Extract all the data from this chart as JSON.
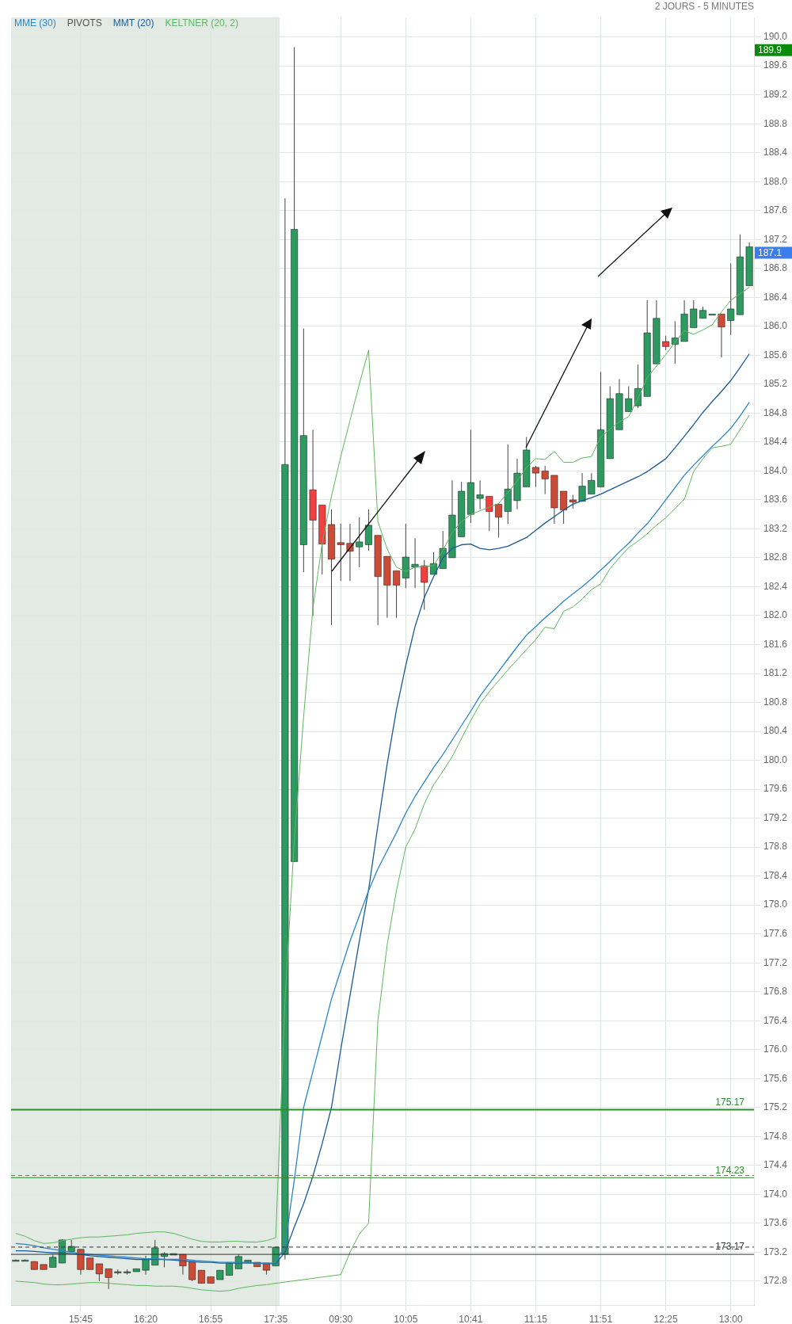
{
  "chart_data": {
    "type": "candlestick",
    "subtitle": "2 JOURS - 5 MINUTES",
    "categories": [
      null,
      null,
      null,
      null,
      null,
      null,
      null,
      "15:45",
      null,
      null,
      null,
      null,
      null,
      null,
      "16:20",
      null,
      null,
      null,
      null,
      null,
      null,
      "16:55",
      null,
      null,
      null,
      null,
      null,
      null,
      "17:35",
      null,
      null,
      null,
      null,
      null,
      null,
      "09:30",
      null,
      null,
      null,
      null,
      null,
      null,
      "10:05",
      null,
      null,
      null,
      null,
      null,
      null,
      "10:41",
      null,
      null,
      null,
      null,
      null,
      null,
      "11:15",
      null,
      null,
      null,
      null,
      null,
      null,
      "11:51",
      null,
      null,
      null,
      null,
      null,
      null,
      "12:25",
      null,
      null,
      null,
      null,
      null,
      null,
      "13:00",
      null,
      null
    ],
    "ohlc": [
      [
        173.09,
        173.1,
        173.08,
        173.09
      ],
      [
        173.09,
        173.1,
        173.08,
        173.09
      ],
      [
        173.07,
        173.07,
        172.96,
        172.96
      ],
      [
        173.03,
        173.03,
        172.96,
        172.96
      ],
      [
        172.99,
        173.17,
        172.99,
        173.13
      ],
      [
        173.05,
        173.38,
        173.05,
        173.37
      ],
      [
        173.21,
        173.37,
        173.21,
        173.28
      ],
      [
        173.24,
        173.24,
        172.89,
        172.96
      ],
      [
        173.12,
        173.12,
        172.96,
        172.96
      ],
      [
        173.04,
        173.04,
        172.8,
        172.9
      ],
      [
        172.97,
        172.97,
        172.69,
        172.85
      ],
      [
        172.93,
        172.96,
        172.89,
        172.93
      ],
      [
        172.93,
        172.96,
        172.89,
        172.93
      ],
      [
        172.93,
        172.97,
        172.93,
        172.97
      ],
      [
        172.95,
        173.15,
        172.89,
        173.1
      ],
      [
        173.02,
        173.37,
        173.02,
        173.26
      ],
      [
        173.14,
        173.2,
        172.99,
        173.18
      ],
      [
        173.16,
        173.18,
        173.16,
        173.18
      ],
      [
        173.17,
        173.17,
        172.89,
        173.01
      ],
      [
        173.07,
        173.07,
        172.8,
        172.82
      ],
      [
        172.95,
        172.95,
        172.77,
        172.77
      ],
      [
        172.86,
        172.86,
        172.77,
        172.77
      ],
      [
        172.82,
        172.95,
        172.82,
        172.95
      ],
      [
        172.88,
        173.06,
        172.88,
        173.05
      ],
      [
        172.97,
        173.17,
        172.97,
        173.14
      ],
      [
        173.06,
        173.09,
        173.06,
        173.09
      ],
      [
        173.06,
        173.06,
        173.0,
        173.0
      ],
      [
        173.05,
        173.05,
        172.89,
        172.95
      ],
      [
        173.01,
        173.27,
        173.01,
        173.27
      ],
      [
        173.17,
        187.77,
        173.1,
        184.09
      ],
      [
        178.6,
        189.86,
        178.6,
        187.34
      ],
      [
        182.98,
        185.97,
        182.6,
        184.49
      ],
      [
        183.74,
        184.57,
        182.0,
        183.32
      ],
      [
        183.53,
        183.53,
        182.57,
        182.99
      ],
      [
        183.26,
        183.47,
        181.87,
        182.78
      ],
      [
        183.01,
        183.27,
        182.48,
        182.98
      ],
      [
        183.0,
        183.27,
        182.48,
        182.89
      ],
      [
        182.95,
        183.36,
        182.67,
        183.02
      ],
      [
        182.98,
        183.47,
        182.9,
        183.25
      ],
      [
        183.11,
        183.11,
        181.87,
        182.54
      ],
      [
        182.82,
        182.82,
        181.97,
        182.42
      ],
      [
        182.62,
        182.62,
        181.97,
        182.42
      ],
      [
        182.52,
        183.27,
        182.38,
        182.81
      ],
      [
        182.67,
        183.07,
        182.38,
        182.71
      ],
      [
        182.69,
        182.77,
        182.08,
        182.46
      ],
      [
        182.57,
        182.88,
        182.57,
        182.72
      ],
      [
        182.65,
        183.17,
        182.65,
        182.93
      ],
      [
        182.8,
        183.87,
        182.8,
        183.39
      ],
      [
        183.09,
        183.85,
        183.09,
        183.72
      ],
      [
        183.4,
        184.57,
        183.28,
        183.84
      ],
      [
        183.62,
        183.87,
        183.47,
        183.67
      ],
      [
        183.65,
        183.65,
        183.17,
        183.44
      ],
      [
        183.54,
        183.54,
        183.08,
        183.36
      ],
      [
        183.44,
        184.37,
        183.27,
        183.75
      ],
      [
        183.59,
        184.17,
        183.47,
        183.97
      ],
      [
        183.78,
        184.47,
        183.78,
        184.29
      ],
      [
        184.05,
        184.07,
        183.78,
        183.97
      ],
      [
        184.0,
        184.07,
        183.68,
        183.89
      ],
      [
        183.94,
        183.94,
        183.27,
        183.49
      ],
      [
        183.72,
        183.72,
        183.27,
        183.46
      ],
      [
        183.6,
        183.67,
        183.48,
        183.57
      ],
      [
        183.58,
        183.97,
        183.58,
        183.79
      ],
      [
        183.68,
        183.97,
        183.68,
        183.87
      ],
      [
        183.78,
        185.37,
        183.78,
        184.57
      ],
      [
        184.17,
        185.17,
        184.17,
        185.0
      ],
      [
        184.57,
        185.27,
        184.57,
        185.07
      ],
      [
        184.82,
        185.17,
        184.82,
        185.0
      ],
      [
        184.9,
        185.47,
        184.87,
        185.14
      ],
      [
        185.03,
        186.36,
        185.03,
        185.91
      ],
      [
        185.48,
        186.36,
        185.48,
        186.11
      ],
      [
        185.79,
        185.87,
        185.67,
        185.72
      ],
      [
        185.75,
        186.07,
        185.48,
        185.84
      ],
      [
        185.79,
        186.36,
        185.79,
        186.17
      ],
      [
        185.98,
        186.36,
        185.98,
        186.24
      ],
      [
        186.11,
        186.27,
        186.11,
        186.22
      ],
      [
        186.17,
        186.17,
        186.17,
        186.17
      ],
      [
        186.17,
        186.17,
        185.57,
        185.99
      ],
      [
        186.08,
        186.87,
        185.88,
        186.24
      ],
      [
        186.16,
        187.27,
        186.16,
        186.96
      ],
      [
        186.56,
        187.16,
        186.56,
        187.1
      ]
    ],
    "colors": [
      "#2e9961",
      "#2e9961",
      "#cc4b37",
      "#cc4b37",
      "#2e9961",
      "#2e9961",
      "#2e9961",
      "#cc4b37",
      "#cc4b37",
      "#cc4b37",
      "#cc4b37",
      "#2e9961",
      "#2e9961",
      "#2e9961",
      "#2e9961",
      "#2e9961",
      "#2e9961",
      "#2e9961",
      "#cc4b37",
      "#cc4b37",
      "#cc4b37",
      "#cc4b37",
      "#2e9961",
      "#2e9961",
      "#2e9961",
      "#2e9961",
      "#cc4b37",
      "#cc4b37",
      "#2e9961",
      "#2e9961",
      "#2e9961",
      "#2e9961",
      "#f04040",
      "#f04040",
      "#cc4b37",
      "#cc4b37",
      "#cc4b37",
      "#2e9961",
      "#2e9961",
      "#cc4b37",
      "#cc4b37",
      "#cc4b37",
      "#2e9961",
      "#2e9961",
      "#f04040",
      "#2e9961",
      "#2e9961",
      "#2e9961",
      "#2e9961",
      "#2e9961",
      "#2e9961",
      "#f04040",
      "#cc4b37",
      "#2e9961",
      "#2e9961",
      "#2e9961",
      "#cc4b37",
      "#cc4b37",
      "#cc4b37",
      "#cc4b37",
      "#cc4b37",
      "#2e9961",
      "#2e9961",
      "#2e9961",
      "#2e9961",
      "#2e9961",
      "#2e9961",
      "#2e9961",
      "#2e9961",
      "#2e9961",
      "#f04040",
      "#2e9961",
      "#2e9961",
      "#2e9961",
      "#2e9961",
      "#2e9961",
      "#cc4b37",
      "#2e9961",
      "#2e9961",
      "#2e9961"
    ],
    "series": [
      {
        "name": "MME (30)",
        "type": "line",
        "color": "#2b86c4",
        "values": [
          173.32,
          173.31,
          173.29,
          173.26,
          173.24,
          173.22,
          173.2,
          173.18,
          173.17,
          173.16,
          173.15,
          173.14,
          173.13,
          173.12,
          173.11,
          173.11,
          173.1,
          173.1,
          173.1,
          173.09,
          173.08,
          173.07,
          173.06,
          173.06,
          173.06,
          173.06,
          173.05,
          173.05,
          173.05,
          173.3,
          174.2,
          175.2,
          175.7,
          176.2,
          176.7,
          177.1,
          177.5,
          177.85,
          178.2,
          178.5,
          178.75,
          179.0,
          179.27,
          179.5,
          179.7,
          179.9,
          180.08,
          180.28,
          180.48,
          180.68,
          180.89,
          181.06,
          181.23,
          181.4,
          181.57,
          181.73,
          181.85,
          181.97,
          182.08,
          182.2,
          182.3,
          182.4,
          182.51,
          182.63,
          182.75,
          182.88,
          183.0,
          183.14,
          183.27,
          183.43,
          183.6,
          183.77,
          183.94,
          184.08,
          184.21,
          184.34,
          184.46,
          184.59,
          184.76,
          184.95
        ]
      },
      {
        "name": "MMT (20)",
        "type": "line",
        "color": "#1a5a96",
        "values": [
          173.22,
          173.22,
          173.21,
          173.2,
          173.19,
          173.19,
          173.18,
          173.17,
          173.15,
          173.14,
          173.13,
          173.12,
          173.11,
          173.1,
          173.1,
          173.1,
          173.1,
          173.09,
          173.08,
          173.07,
          173.06,
          173.06,
          173.05,
          173.05,
          173.05,
          173.05,
          173.05,
          173.04,
          173.04,
          173.2,
          173.55,
          173.87,
          174.25,
          174.7,
          175.2,
          176.0,
          176.75,
          177.5,
          178.21,
          179.1,
          179.95,
          180.7,
          181.31,
          181.85,
          182.25,
          182.54,
          182.8,
          182.93,
          182.98,
          182.99,
          182.93,
          182.91,
          182.93,
          182.96,
          183.02,
          183.08,
          183.18,
          183.28,
          183.37,
          183.46,
          183.54,
          183.59,
          183.63,
          183.68,
          183.74,
          183.8,
          183.86,
          183.92,
          183.99,
          184.08,
          184.17,
          184.32,
          184.48,
          184.64,
          184.81,
          184.96,
          185.1,
          185.25,
          185.43,
          185.62
        ]
      },
      {
        "name": "KELTNER (20, 2)",
        "type": "line",
        "color": "#5cb85c",
        "values": [
          173.46,
          173.42,
          173.36,
          173.32,
          173.33,
          173.36,
          173.38,
          173.4,
          173.41,
          173.41,
          173.42,
          173.43,
          173.44,
          173.46,
          173.47,
          173.48,
          173.48,
          173.46,
          173.42,
          173.38,
          173.35,
          173.34,
          173.34,
          173.35,
          173.35,
          173.34,
          173.34,
          173.36,
          173.4,
          176.7,
          178.9,
          180.6,
          182.1,
          183.0,
          183.65,
          184.2,
          184.7,
          185.2,
          185.67,
          183.3,
          182.92,
          182.67,
          182.61,
          182.67,
          182.68,
          182.69,
          182.9,
          183.15,
          183.3,
          183.4,
          183.45,
          183.5,
          183.55,
          183.7,
          183.86,
          184.05,
          184.17,
          184.16,
          184.27,
          184.12,
          184.12,
          184.18,
          184.2,
          184.47,
          184.58,
          184.68,
          184.75,
          185.0,
          185.29,
          185.45,
          185.61,
          185.78,
          185.94,
          185.89,
          185.95,
          186.02,
          186.2,
          186.36,
          186.45,
          186.54
        ]
      },
      {
        "type": "line",
        "color": "#5cb85c",
        "values": [
          172.8,
          172.79,
          172.78,
          172.76,
          172.75,
          172.75,
          172.76,
          172.77,
          172.78,
          172.78,
          172.77,
          172.76,
          172.75,
          172.74,
          172.74,
          172.73,
          172.73,
          172.73,
          172.72,
          172.7,
          172.68,
          172.67,
          172.66,
          172.67,
          172.7,
          172.72,
          172.74,
          172.75,
          172.77,
          null,
          null,
          null,
          null,
          null,
          null,
          172.89,
          173.2,
          173.45,
          173.6,
          176.4,
          177.45,
          178.2,
          178.8,
          179.05,
          179.4,
          179.66,
          179.85,
          180.05,
          180.3,
          180.55,
          180.78,
          180.95,
          181.1,
          181.25,
          181.39,
          181.53,
          181.67,
          181.84,
          181.82,
          182.06,
          182.12,
          182.23,
          182.36,
          182.44,
          182.65,
          182.8,
          182.94,
          183.03,
          183.13,
          183.25,
          183.35,
          183.48,
          183.61,
          183.99,
          184.17,
          184.32,
          184.34,
          184.37,
          184.57,
          184.77
        ]
      }
    ],
    "ylim": [
      172.47,
      190.27
    ],
    "yticks": [
      {
        "value": 172.8,
        "label": "172.8"
      },
      {
        "value": 173.2,
        "label": "173.2"
      },
      {
        "value": 173.6,
        "label": "173.6"
      },
      {
        "value": 174,
        "label": "174.0"
      },
      {
        "value": 174.4,
        "label": "174.4"
      },
      {
        "value": 174.8,
        "label": "174.8"
      },
      {
        "value": 175.2,
        "label": "175.2"
      },
      {
        "value": 175.6,
        "label": "175.6"
      },
      {
        "value": 176,
        "label": "176.0"
      },
      {
        "value": 176.4,
        "label": "176.4"
      },
      {
        "value": 176.8,
        "label": "176.8"
      },
      {
        "value": 177.2,
        "label": "177.2"
      },
      {
        "value": 177.6,
        "label": "177.6"
      },
      {
        "value": 178,
        "label": "178.0"
      },
      {
        "value": 178.4,
        "label": "178.4"
      },
      {
        "value": 178.8,
        "label": "178.8"
      },
      {
        "value": 179.2,
        "label": "179.2"
      },
      {
        "value": 179.6,
        "label": "179.6"
      },
      {
        "value": 180,
        "label": "180.0"
      },
      {
        "value": 180.4,
        "label": "180.4"
      },
      {
        "value": 180.8,
        "label": "180.8"
      },
      {
        "value": 181.2,
        "label": "181.2"
      },
      {
        "value": 181.6,
        "label": "181.6"
      },
      {
        "value": 182,
        "label": "182.0"
      },
      {
        "value": 182.4,
        "label": "182.4"
      },
      {
        "value": 182.8,
        "label": "182.8"
      },
      {
        "value": 183.2,
        "label": "183.2"
      },
      {
        "value": 183.6,
        "label": "183.6"
      },
      {
        "value": 184,
        "label": "184.0"
      },
      {
        "value": 184.4,
        "label": "184.4"
      },
      {
        "value": 184.8,
        "label": "184.8"
      },
      {
        "value": 185.2,
        "label": "185.2"
      },
      {
        "value": 185.6,
        "label": "185.6"
      },
      {
        "value": 186,
        "label": "186.0"
      },
      {
        "value": 186.4,
        "label": "186.4"
      },
      {
        "value": 186.8,
        "label": "186.8"
      },
      {
        "value": 187.2,
        "label": "187.2"
      },
      {
        "value": 187.6,
        "label": "187.6"
      },
      {
        "value": 188,
        "label": "188.0"
      },
      {
        "value": 188.4,
        "label": "188.4"
      },
      {
        "value": 188.8,
        "label": "188.8"
      },
      {
        "value": 189.2,
        "label": "189.2"
      },
      {
        "value": 189.6,
        "label": "189.6"
      },
      {
        "value": 190,
        "label": "190.0"
      }
    ],
    "ref_lines": [
      {
        "axis": "y",
        "value": 175.17,
        "label": "175.17",
        "color": "#2e8b2e"
      },
      {
        "axis": "y",
        "value": 174.23,
        "label": "174.23",
        "color": "#2e8b2e"
      },
      {
        "axis": "y",
        "value": 173.17,
        "label": "173.17",
        "color": "#333333"
      },
      {
        "axis": "y",
        "value": 174.26,
        "color": "#e53935",
        "line_style": "dashed"
      },
      {
        "axis": "y",
        "value": 173.27,
        "color": "#333333",
        "line_style": "dashed"
      }
    ],
    "annotations": [
      "PIVOTS",
      "189.9",
      "187.1"
    ],
    "grid": true,
    "legend": "top left"
  }
}
